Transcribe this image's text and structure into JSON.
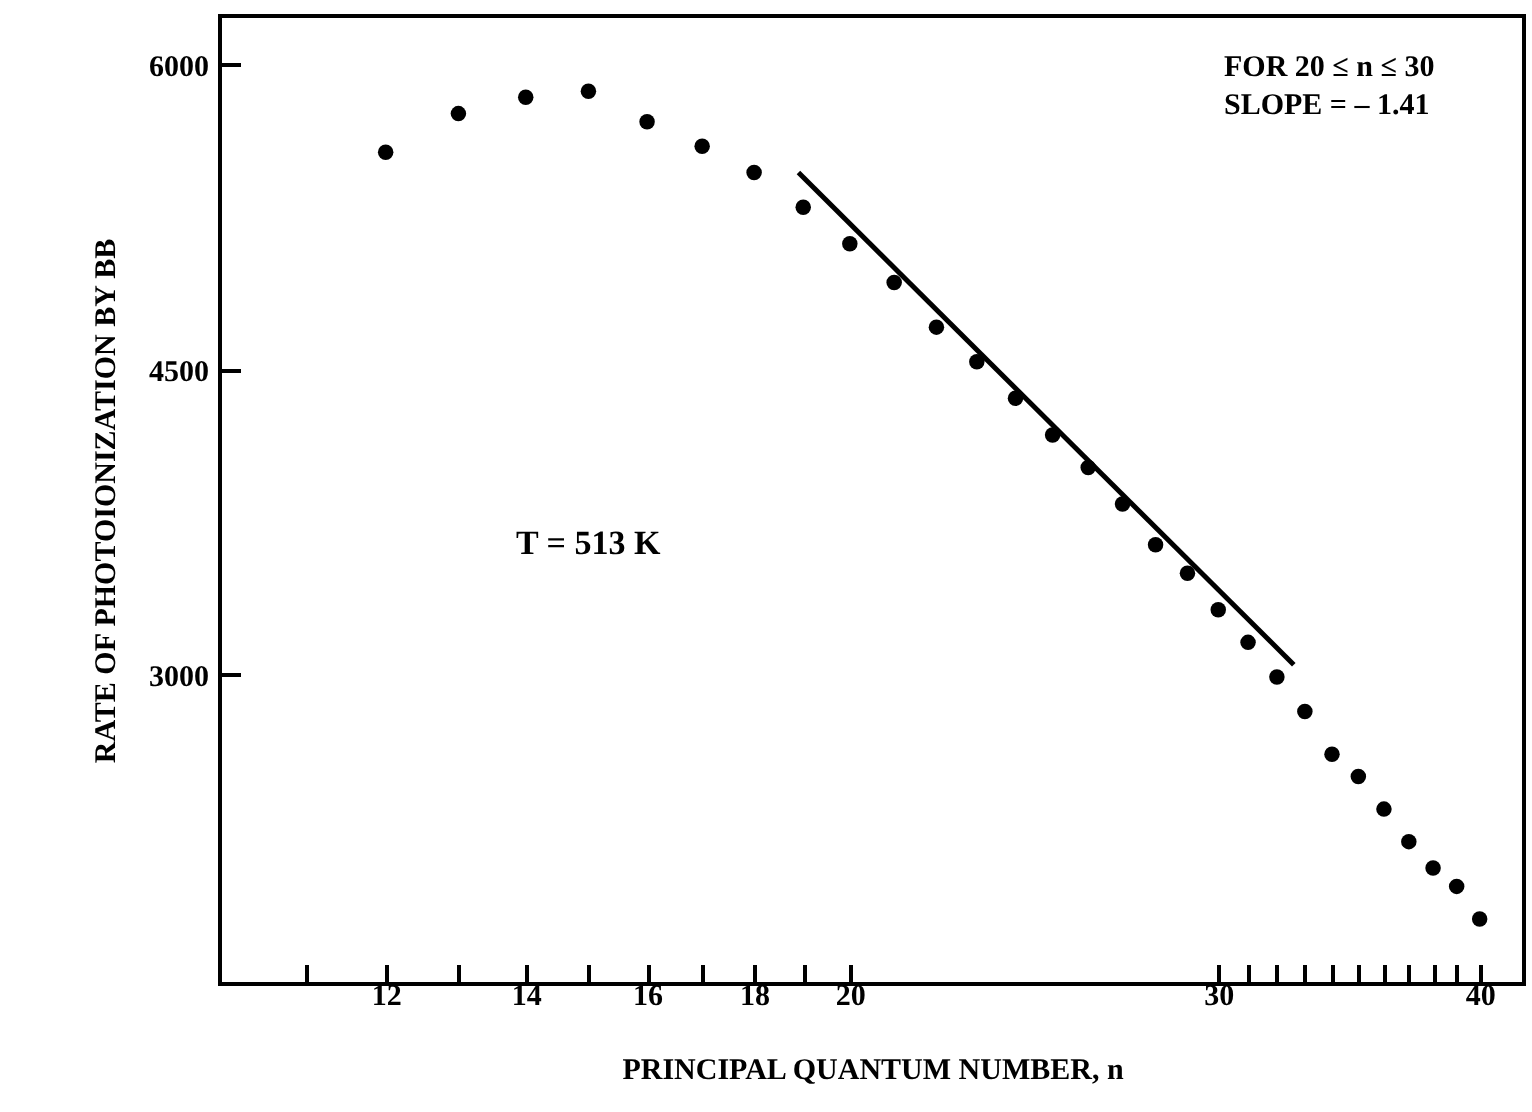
{
  "chart_data": {
    "type": "scatter",
    "xlabel": "PRINCIPAL QUANTUM NUMBER, n",
    "ylabel": "RATE OF PHOTOIONIZATION BY BB",
    "annotations": [
      "FOR 20 ≤ n ≤ 30",
      "SLOPE = – 1.41",
      "T = 513 K"
    ],
    "log": "x",
    "xlim": [
      10,
      42
    ],
    "xticks": [
      {
        "value": 11,
        "label": null
      },
      12,
      {
        "value": 13,
        "label": null
      },
      14,
      {
        "value": 15,
        "label": null
      },
      16,
      {
        "value": 17,
        "label": null
      },
      18,
      {
        "value": 19,
        "label": null
      },
      20,
      30,
      {
        "value": 31,
        "label": null
      },
      {
        "value": 32,
        "label": null
      },
      {
        "value": 33,
        "label": null
      },
      {
        "value": 34,
        "label": null
      },
      {
        "value": 35,
        "label": null
      },
      {
        "value": 36,
        "label": null
      },
      {
        "value": 37,
        "label": null
      },
      {
        "value": 38,
        "label": null
      },
      {
        "value": 39,
        "label": null
      },
      40
    ],
    "ylim": [
      1480,
      6240
    ],
    "yticks": [
      3000,
      4500,
      6000
    ],
    "series": [
      {
        "marker": "circle",
        "color": "#000000",
        "x": [
          12,
          13,
          14,
          15,
          16,
          17,
          18,
          19,
          20,
          21,
          22,
          23,
          24,
          25,
          26,
          27,
          28,
          29,
          30,
          31,
          32,
          33,
          34,
          35,
          36,
          37,
          38,
          39,
          40
        ],
        "values": [
          5570,
          5760,
          5840,
          5870,
          5720,
          5600,
          5470,
          5300,
          5120,
          4930,
          4710,
          4540,
          4360,
          4180,
          4020,
          3840,
          3640,
          3500,
          3320,
          3160,
          2990,
          2820,
          2610,
          2500,
          2340,
          2180,
          2050,
          1960,
          1800
        ]
      },
      {
        "type": "line",
        "color": "#000000",
        "x": [
          18.9,
          32.6
        ],
        "values": [
          5470,
          3050
        ]
      }
    ]
  }
}
